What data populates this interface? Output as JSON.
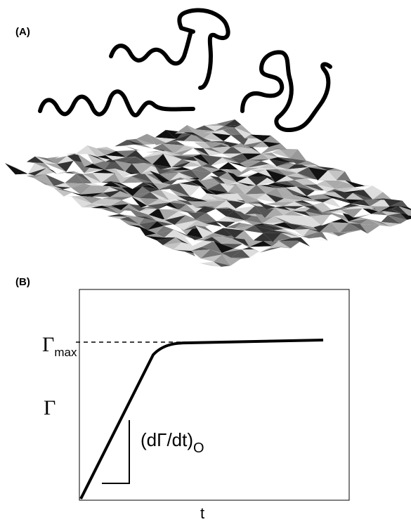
{
  "panel_a": {
    "label": "(A)"
  },
  "panel_b": {
    "label": "(B)",
    "gamma_max": {
      "symbol": "Γ",
      "subscript": "max"
    },
    "y_label": "Γ",
    "slope_label": {
      "text": "(dΓ/dt)",
      "subscript": "O"
    },
    "x_label": "t"
  }
}
